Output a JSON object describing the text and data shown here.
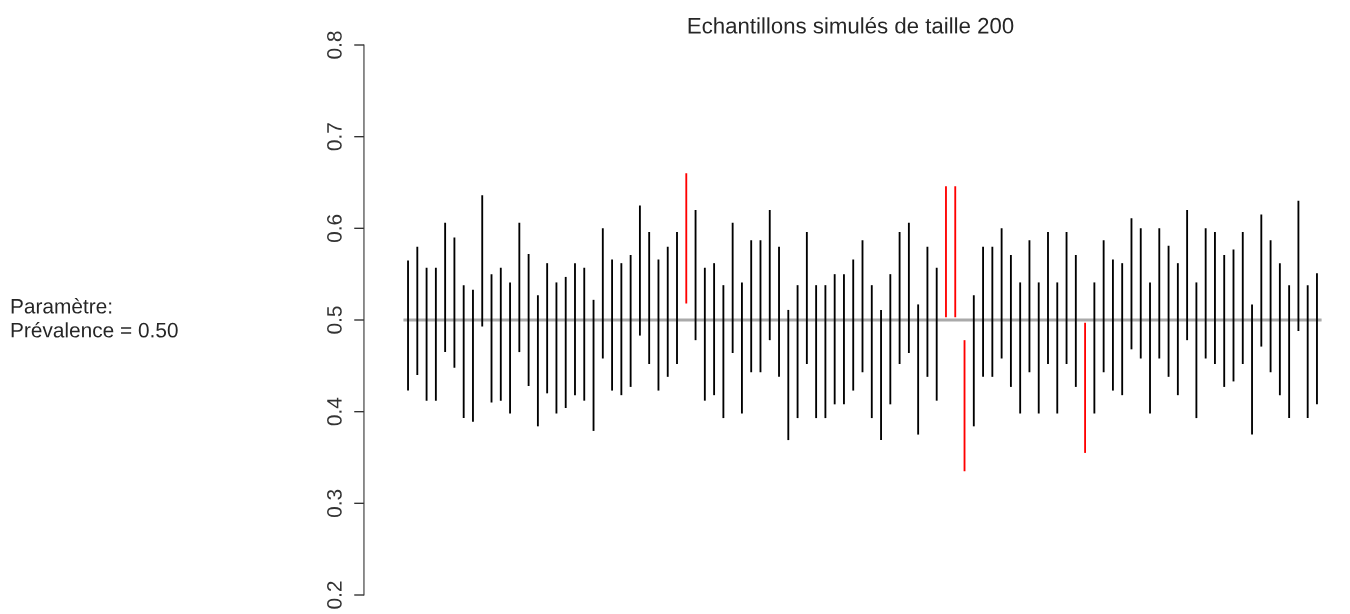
{
  "chart_data": {
    "type": "bar",
    "title": "Echantillons simulés de taille 200",
    "categories": [
      null,
      null,
      null,
      null,
      null,
      null,
      null,
      null,
      null,
      null,
      null,
      null,
      null,
      null,
      null,
      null,
      null,
      null,
      null,
      null,
      null,
      null,
      null,
      null,
      null,
      null,
      null,
      null,
      null,
      null,
      null,
      null,
      null,
      null,
      null,
      null,
      null,
      null,
      null,
      null,
      null,
      null,
      null,
      null,
      null,
      null,
      null,
      null,
      null,
      null,
      null,
      null,
      null,
      null,
      null,
      null,
      null,
      null,
      null,
      null,
      null,
      null,
      null,
      null,
      null,
      null,
      null,
      null,
      null,
      null,
      null,
      null,
      null,
      null,
      null,
      null,
      null,
      null,
      null,
      null,
      null,
      null,
      null,
      null,
      null,
      null,
      null,
      null,
      null,
      null,
      null,
      null,
      null,
      null,
      null,
      null,
      null,
      null,
      null
    ],
    "base": [
      0.423,
      0.44,
      0.412,
      0.412,
      0.465,
      0.448,
      0.393,
      0.389,
      0.493,
      0.41,
      0.412,
      0.398,
      0.465,
      0.428,
      0.384,
      0.42,
      0.398,
      0.404,
      0.418,
      0.412,
      0.379,
      0.458,
      0.423,
      0.418,
      0.427,
      0.483,
      0.452,
      0.423,
      0.438,
      0.452,
      0.518,
      0.478,
      0.412,
      0.418,
      0.393,
      0.464,
      0.398,
      0.443,
      0.443,
      0.478,
      0.438,
      0.369,
      0.393,
      0.452,
      0.393,
      0.393,
      0.408,
      0.408,
      0.423,
      0.443,
      0.393,
      0.369,
      0.408,
      0.452,
      0.464,
      0.375,
      0.438,
      0.412,
      0.503,
      0.503,
      0.335,
      0.384,
      0.438,
      0.438,
      0.458,
      0.427,
      0.398,
      0.443,
      0.398,
      0.452,
      0.398,
      0.452,
      0.427,
      0.355,
      0.398,
      0.443,
      0.423,
      0.418,
      0.468,
      0.458,
      0.398,
      0.458,
      0.438,
      0.418,
      0.478,
      0.393,
      0.458,
      0.452,
      0.427,
      0.433,
      0.452,
      0.375,
      0.471,
      0.443,
      0.418,
      0.393,
      0.488,
      0.393,
      0.408
    ],
    "values": [
      0.142,
      0.14,
      0.145,
      0.145,
      0.141,
      0.142,
      0.145,
      0.144,
      0.143,
      0.14,
      0.145,
      0.143,
      0.141,
      0.144,
      0.143,
      0.142,
      0.143,
      0.143,
      0.144,
      0.145,
      0.143,
      0.142,
      0.143,
      0.144,
      0.144,
      0.142,
      0.144,
      0.143,
      0.142,
      0.144,
      0.142,
      0.142,
      0.145,
      0.144,
      0.145,
      0.142,
      0.143,
      0.144,
      0.144,
      0.142,
      0.142,
      0.142,
      0.145,
      0.144,
      0.145,
      0.145,
      0.142,
      0.142,
      0.143,
      0.144,
      0.145,
      0.142,
      0.142,
      0.144,
      0.142,
      0.142,
      0.142,
      0.145,
      0.143,
      0.143,
      0.143,
      0.143,
      0.142,
      0.142,
      0.142,
      0.144,
      0.143,
      0.144,
      0.143,
      0.144,
      0.143,
      0.144,
      0.144,
      0.142,
      0.143,
      0.144,
      0.143,
      0.144,
      0.143,
      0.142,
      0.143,
      0.142,
      0.143,
      0.144,
      0.142,
      0.148,
      0.142,
      0.144,
      0.144,
      0.144,
      0.144,
      0.142,
      0.144,
      0.144,
      0.144,
      0.145,
      0.142,
      0.145,
      0.143
    ],
    "colors": [
      "#000000",
      "#000000",
      "#000000",
      "#000000",
      "#000000",
      "#000000",
      "#000000",
      "#000000",
      "#000000",
      "#000000",
      "#000000",
      "#000000",
      "#000000",
      "#000000",
      "#000000",
      "#000000",
      "#000000",
      "#000000",
      "#000000",
      "#000000",
      "#000000",
      "#000000",
      "#000000",
      "#000000",
      "#000000",
      "#000000",
      "#000000",
      "#000000",
      "#000000",
      "#000000",
      "#ff0000",
      "#000000",
      "#000000",
      "#000000",
      "#000000",
      "#000000",
      "#000000",
      "#000000",
      "#000000",
      "#000000",
      "#000000",
      "#000000",
      "#000000",
      "#000000",
      "#000000",
      "#000000",
      "#000000",
      "#000000",
      "#000000",
      "#000000",
      "#000000",
      "#000000",
      "#000000",
      "#000000",
      "#000000",
      "#000000",
      "#000000",
      "#000000",
      "#ff0000",
      "#ff0000",
      "#ff0000",
      "#000000",
      "#000000",
      "#000000",
      "#000000",
      "#000000",
      "#000000",
      "#000000",
      "#000000",
      "#000000",
      "#000000",
      "#000000",
      "#000000",
      "#ff0000",
      "#000000",
      "#000000",
      "#000000",
      "#000000",
      "#000000",
      "#000000",
      "#000000",
      "#000000",
      "#000000",
      "#000000",
      "#000000",
      "#000000",
      "#000000",
      "#000000",
      "#000000",
      "#000000",
      "#000000",
      "#000000",
      "#000000",
      "#000000",
      "#000000",
      "#000000",
      "#000000",
      "#000000",
      "#000000"
    ],
    "ylim": [
      0.2,
      0.8
    ],
    "yticks": [
      0.2,
      0.3,
      0.4,
      0.5,
      0.6,
      0.7,
      0.8
    ],
    "ref_lines": [
      {
        "axis": "y",
        "value": 0.5,
        "color": "#aaaaaa"
      }
    ],
    "annotations": [
      "Paramètre:\nPrévalence = 0.50"
    ],
    "tick_labels": "y",
    "grid": false,
    "legend": false
  }
}
